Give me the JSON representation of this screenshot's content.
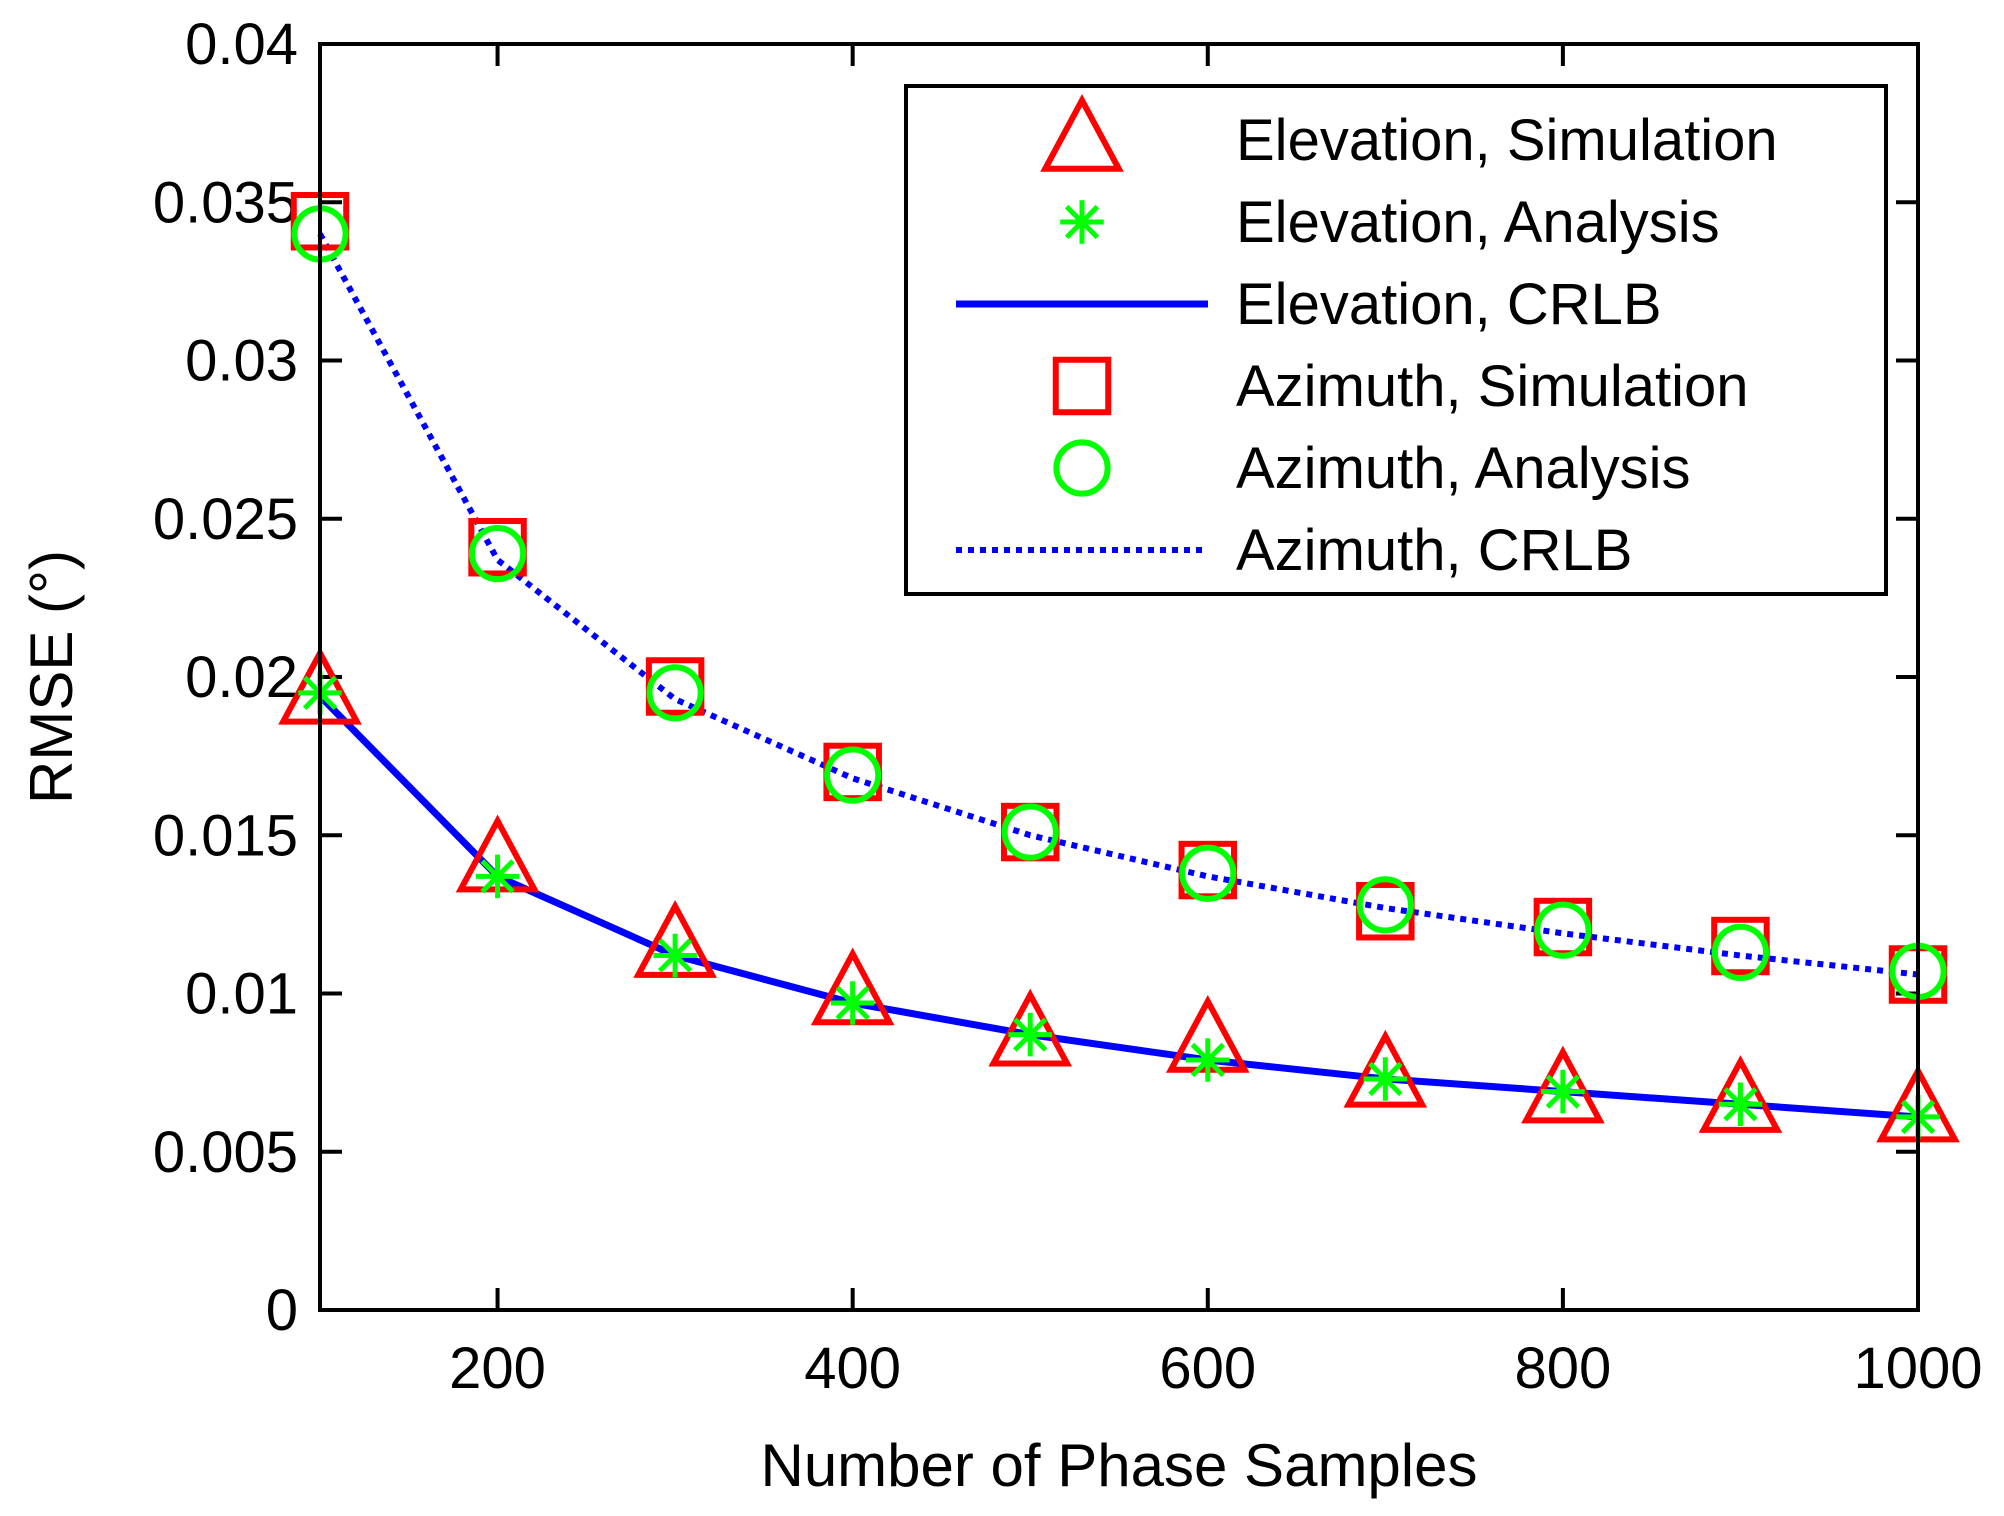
{
  "chart_data": {
    "type": "line",
    "title": "",
    "xlabel": "Number of Phase Samples",
    "ylabel": "RMSE (°)",
    "xlim": [
      100,
      1000
    ],
    "ylim": [
      0,
      0.04
    ],
    "x_ticks": [
      200,
      400,
      600,
      800,
      1000
    ],
    "x_tick_labels": [
      "200",
      "400",
      "600",
      "800",
      "1000"
    ],
    "y_ticks": [
      0,
      0.005,
      0.01,
      0.015,
      0.02,
      0.025,
      0.03,
      0.035,
      0.04
    ],
    "y_tick_labels": [
      "0",
      "0.005",
      "0.01",
      "0.015",
      "0.02",
      "0.025",
      "0.03",
      "0.035",
      "0.04"
    ],
    "grid": false,
    "legend_position": "top-right",
    "x": [
      100,
      200,
      300,
      400,
      500,
      600,
      700,
      800,
      900,
      1000
    ],
    "series": [
      {
        "name": "Elevation, Simulation",
        "style": "marker",
        "marker": "triangle",
        "color": "#ff0000",
        "values": [
          0.0195,
          0.0142,
          0.0115,
          0.01,
          0.0087,
          0.0085,
          0.0074,
          0.0069,
          0.0066,
          0.0063
        ]
      },
      {
        "name": "Elevation, Analysis",
        "style": "marker",
        "marker": "asterisk",
        "color": "#00ff00",
        "values": [
          0.0195,
          0.0137,
          0.0112,
          0.0097,
          0.0087,
          0.0079,
          0.0073,
          0.0069,
          0.0065,
          0.0061
        ]
      },
      {
        "name": "Elevation, CRLB",
        "style": "solid",
        "color": "#0000ff",
        "values": [
          0.0194,
          0.0137,
          0.0112,
          0.0097,
          0.0087,
          0.0079,
          0.0073,
          0.0069,
          0.0065,
          0.0061
        ]
      },
      {
        "name": "Azimuth, Simulation",
        "style": "marker",
        "marker": "square",
        "color": "#ff0000",
        "values": [
          0.0344,
          0.0241,
          0.0197,
          0.017,
          0.0151,
          0.0139,
          0.0126,
          0.0121,
          0.0115,
          0.0106
        ]
      },
      {
        "name": "Azimuth, Analysis",
        "style": "marker",
        "marker": "circle",
        "color": "#00ff00",
        "values": [
          0.034,
          0.0239,
          0.0195,
          0.0169,
          0.0151,
          0.0138,
          0.0128,
          0.012,
          0.0113,
          0.0107
        ]
      },
      {
        "name": "Azimuth, CRLB",
        "style": "dotted",
        "color": "#0000ff",
        "values": [
          0.034,
          0.0237,
          0.0193,
          0.0168,
          0.015,
          0.0137,
          0.0127,
          0.0119,
          0.0112,
          0.0106
        ]
      }
    ]
  }
}
